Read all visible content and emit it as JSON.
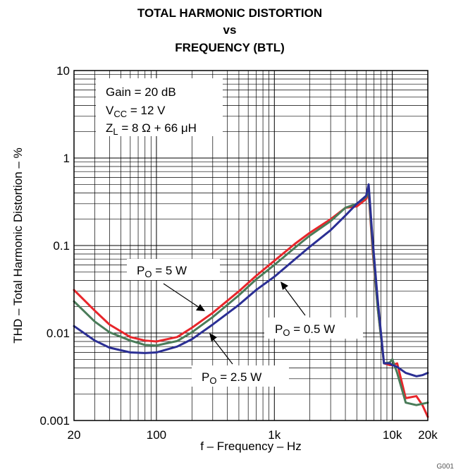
{
  "chart_data": {
    "type": "line",
    "title": [
      "TOTAL HARMONIC DISTORTION",
      "vs",
      "FREQUENCY (BTL)"
    ],
    "xlabel": "f – Frequency – Hz",
    "ylabel": "THD – Total Harmonic Distortion – %",
    "x_scale": "log",
    "y_scale": "log",
    "xlim": [
      20,
      20000
    ],
    "ylim": [
      0.001,
      10
    ],
    "grid": true,
    "x_ticks": [
      {
        "value": 20,
        "label": "20"
      },
      {
        "value": 100,
        "label": "100"
      },
      {
        "value": 1000,
        "label": "1k"
      },
      {
        "value": 10000,
        "label": "10k"
      },
      {
        "value": 20000,
        "label": "20k"
      }
    ],
    "y_ticks": [
      {
        "value": 10,
        "label": "10"
      },
      {
        "value": 1,
        "label": "1"
      },
      {
        "value": 0.1,
        "label": "0.1"
      },
      {
        "value": 0.01,
        "label": "0.01"
      },
      {
        "value": 0.001,
        "label": "0.001"
      }
    ],
    "conditions": {
      "gain": "Gain = 20 dB",
      "vcc_main": "V",
      "vcc_sub": "CC",
      "vcc_rest": " = 12 V",
      "zl_main": "Z",
      "zl_sub": "L",
      "zl_rest": " = 8 Ω + 66 μH"
    },
    "series": [
      {
        "name_main": "P",
        "name_sub": "O",
        "name_rest": " = 5 W",
        "color": "#e8262b",
        "points": [
          [
            20,
            0.031
          ],
          [
            30,
            0.018
          ],
          [
            40,
            0.0125
          ],
          [
            60,
            0.009
          ],
          [
            80,
            0.0082
          ],
          [
            100,
            0.008
          ],
          [
            150,
            0.009
          ],
          [
            200,
            0.0115
          ],
          [
            300,
            0.017
          ],
          [
            500,
            0.03
          ],
          [
            700,
            0.045
          ],
          [
            1000,
            0.067
          ],
          [
            1500,
            0.105
          ],
          [
            2000,
            0.14
          ],
          [
            3000,
            0.2
          ],
          [
            4000,
            0.27
          ],
          [
            5000,
            0.28
          ],
          [
            6000,
            0.34
          ],
          [
            6300,
            0.4
          ],
          [
            6800,
            0.09
          ],
          [
            7500,
            0.02
          ],
          [
            8500,
            0.0045
          ],
          [
            9500,
            0.0043
          ],
          [
            10000,
            0.0043
          ],
          [
            11000,
            0.0045
          ],
          [
            13000,
            0.0018
          ],
          [
            16000,
            0.0019
          ],
          [
            18000,
            0.0015
          ],
          [
            20000,
            0.0011
          ]
        ]
      },
      {
        "name_main": "P",
        "name_sub": "O",
        "name_rest": " = 2.5 W",
        "color": "#4a7c59",
        "points": [
          [
            20,
            0.023
          ],
          [
            30,
            0.0135
          ],
          [
            40,
            0.0102
          ],
          [
            60,
            0.0082
          ],
          [
            80,
            0.0073
          ],
          [
            100,
            0.0072
          ],
          [
            150,
            0.0081
          ],
          [
            200,
            0.0102
          ],
          [
            300,
            0.0152
          ],
          [
            500,
            0.027
          ],
          [
            700,
            0.041
          ],
          [
            1000,
            0.06
          ],
          [
            1500,
            0.095
          ],
          [
            2000,
            0.13
          ],
          [
            3000,
            0.19
          ],
          [
            4000,
            0.27
          ],
          [
            5000,
            0.3
          ],
          [
            6000,
            0.36
          ],
          [
            6300,
            0.42
          ],
          [
            6800,
            0.1
          ],
          [
            7500,
            0.02
          ],
          [
            8500,
            0.0045
          ],
          [
            9500,
            0.0046
          ],
          [
            10000,
            0.005
          ],
          [
            11000,
            0.0035
          ],
          [
            13000,
            0.0016
          ],
          [
            16000,
            0.0015
          ],
          [
            20000,
            0.0016
          ]
        ]
      },
      {
        "name_main": "P",
        "name_sub": "O",
        "name_rest": " = 0.5 W",
        "color": "#2b2f94",
        "points": [
          [
            20,
            0.012
          ],
          [
            30,
            0.0082
          ],
          [
            40,
            0.0068
          ],
          [
            60,
            0.006
          ],
          [
            80,
            0.0059
          ],
          [
            100,
            0.006
          ],
          [
            150,
            0.007
          ],
          [
            200,
            0.0085
          ],
          [
            300,
            0.0125
          ],
          [
            500,
            0.021
          ],
          [
            700,
            0.031
          ],
          [
            1000,
            0.044
          ],
          [
            1500,
            0.07
          ],
          [
            2000,
            0.097
          ],
          [
            3000,
            0.15
          ],
          [
            4000,
            0.22
          ],
          [
            5000,
            0.3
          ],
          [
            6000,
            0.37
          ],
          [
            6300,
            0.5
          ],
          [
            6800,
            0.12
          ],
          [
            7500,
            0.025
          ],
          [
            8500,
            0.0045
          ],
          [
            9500,
            0.0045
          ],
          [
            10000,
            0.0043
          ],
          [
            11000,
            0.0041
          ],
          [
            13000,
            0.0035
          ],
          [
            16000,
            0.0032
          ],
          [
            18000,
            0.0033
          ],
          [
            20000,
            0.0035
          ]
        ]
      }
    ],
    "figure_code": "G001"
  }
}
